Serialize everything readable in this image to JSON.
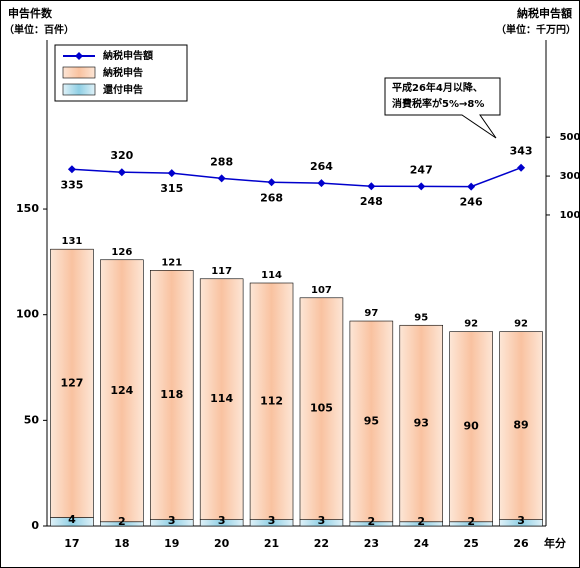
{
  "chart_data": {
    "type": "bar",
    "left_title": [
      "申告件数",
      "（単位：百件）"
    ],
    "right_title": [
      "納税申告額",
      "（単位：千万円）"
    ],
    "x_label": "年分",
    "annotation": [
      "平成26年4月以降、",
      "消費税率が5%→8%"
    ],
    "categories": [
      "17",
      "18",
      "19",
      "20",
      "21",
      "22",
      "23",
      "24",
      "25",
      "26"
    ],
    "series": [
      {
        "name": "還付申告",
        "color": "#a9d9ea",
        "values": [
          4,
          2,
          3,
          3,
          3,
          3,
          2,
          2,
          2,
          3
        ]
      },
      {
        "name": "納税申告",
        "color": "#fac9a8",
        "values": [
          127,
          124,
          118,
          114,
          112,
          105,
          95,
          93,
          90,
          89
        ]
      },
      {
        "name": "納税申告額",
        "color": "#0000cc",
        "axis": "y2",
        "type": "line",
        "values": [
          335,
          320,
          315,
          288,
          268,
          264,
          248,
          247,
          246,
          343
        ]
      }
    ],
    "totals": [
      131,
      126,
      121,
      117,
      114,
      107,
      97,
      95,
      92,
      92
    ],
    "ylim": [
      0,
      230
    ],
    "yticks": [
      0,
      50,
      100,
      150
    ],
    "y2lim": [
      -1500,
      1000
    ],
    "y2ticks": [
      100,
      300,
      500
    ]
  }
}
